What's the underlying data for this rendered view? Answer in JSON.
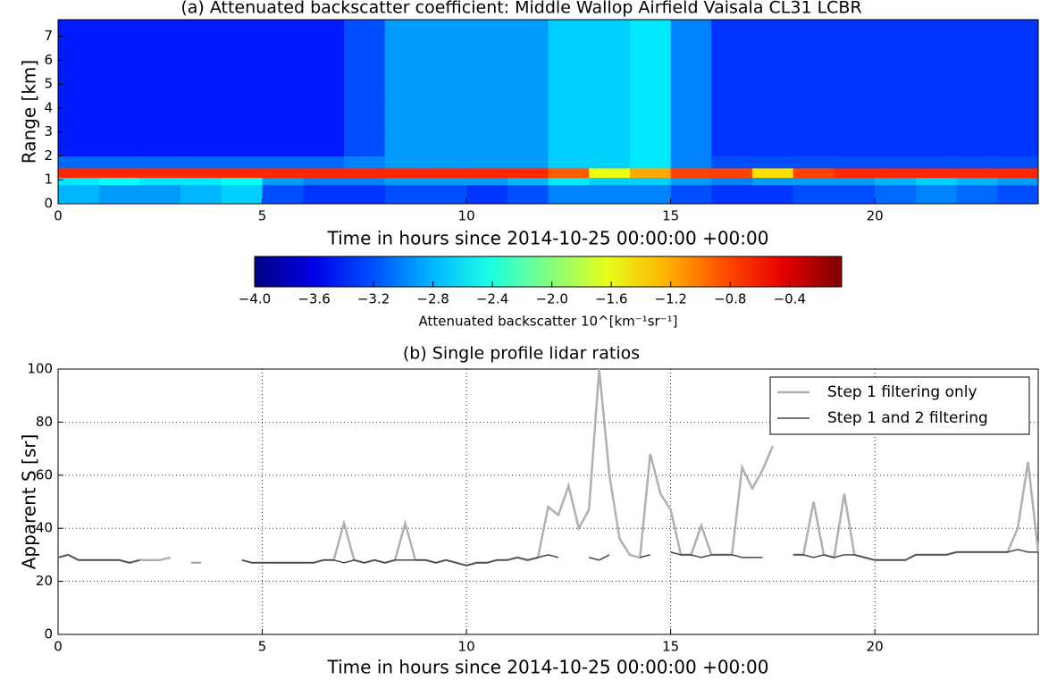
{
  "chart_data": [
    {
      "type": "heatmap",
      "title": "(a)   Attenuated backscatter coefficient: Middle Wallop Airfield Vaisala CL31 LCBR",
      "xlabel": "Time in hours since 2014-10-25 00:00:00 +00:00",
      "ylabel": "Range [km]",
      "x_edges": [
        0,
        1,
        2,
        3,
        4,
        5,
        6,
        7,
        8,
        9,
        10,
        11,
        12,
        13,
        14,
        15,
        16,
        17,
        18,
        19,
        20,
        21,
        22,
        23,
        24
      ],
      "y_edges": [
        0,
        0.8,
        1.1,
        1.5,
        2,
        3,
        4.5,
        6,
        7.7
      ],
      "z": [
        [
          -2.8,
          -2.9,
          -2.9,
          -2.8,
          -2.7,
          -3.2,
          -3.3,
          -3.3,
          -3.2,
          -3.2,
          -3.3,
          -3.2,
          -3.0,
          -3.0,
          -3.0,
          -3.2,
          -3.3,
          -3.3,
          -3.2,
          -3.2,
          -3.1,
          -3.0,
          -3.1,
          -3.2
        ],
        [
          -2.6,
          -2.5,
          -2.6,
          -2.6,
          -2.5,
          -2.9,
          -3.0,
          -3.0,
          -2.9,
          -2.9,
          -2.9,
          -2.8,
          -2.6,
          -2.7,
          -2.7,
          -2.9,
          -3.0,
          -2.9,
          -2.9,
          -2.9,
          -2.8,
          -2.7,
          -2.8,
          -2.9
        ],
        [
          -0.7,
          -0.7,
          -0.7,
          -0.7,
          -0.7,
          -0.7,
          -0.7,
          -0.7,
          -0.7,
          -0.7,
          -0.7,
          -0.7,
          -0.9,
          -1.6,
          -1.2,
          -0.8,
          -0.8,
          -1.4,
          -0.8,
          -0.7,
          -0.7,
          -0.7,
          -0.7,
          -0.7
        ],
        [
          -3.1,
          -3.1,
          -3.1,
          -3.1,
          -3.1,
          -3.1,
          -3.1,
          -3.0,
          -2.9,
          -2.9,
          -2.9,
          -2.9,
          -2.7,
          -2.7,
          -2.6,
          -3.0,
          -3.2,
          -3.2,
          -3.2,
          -3.2,
          -3.2,
          -3.2,
          -3.2,
          -3.2
        ],
        [
          -3.4,
          -3.4,
          -3.4,
          -3.4,
          -3.4,
          -3.4,
          -3.4,
          -3.2,
          -2.9,
          -2.9,
          -2.9,
          -2.9,
          -2.7,
          -2.7,
          -2.6,
          -3.0,
          -3.3,
          -3.3,
          -3.3,
          -3.3,
          -3.3,
          -3.3,
          -3.3,
          -3.3
        ],
        [
          -3.4,
          -3.4,
          -3.4,
          -3.4,
          -3.4,
          -3.4,
          -3.4,
          -3.2,
          -2.9,
          -2.9,
          -2.9,
          -2.9,
          -2.7,
          -2.7,
          -2.6,
          -3.0,
          -3.3,
          -3.3,
          -3.3,
          -3.3,
          -3.3,
          -3.3,
          -3.3,
          -3.3
        ],
        [
          -3.4,
          -3.4,
          -3.4,
          -3.4,
          -3.4,
          -3.4,
          -3.4,
          -3.2,
          -2.9,
          -2.9,
          -2.9,
          -2.9,
          -2.7,
          -2.7,
          -2.6,
          -3.0,
          -3.3,
          -3.3,
          -3.3,
          -3.3,
          -3.3,
          -3.3,
          -3.3,
          -3.3
        ],
        [
          -3.4,
          -3.4,
          -3.4,
          -3.4,
          -3.4,
          -3.4,
          -3.4,
          -3.2,
          -2.9,
          -2.9,
          -2.9,
          -2.9,
          -2.7,
          -2.7,
          -2.6,
          -3.0,
          -3.3,
          -3.3,
          -3.3,
          -3.3,
          -3.3,
          -3.3,
          -3.3,
          -3.3
        ]
      ],
      "xlim": [
        0,
        24
      ],
      "ylim": [
        0,
        7.7
      ],
      "xticks": [
        0,
        5,
        10,
        15,
        20
      ],
      "yticks": [
        0,
        1,
        2,
        3,
        4,
        5,
        6,
        7
      ],
      "colorbar": {
        "label": "Attenuated backscatter 10^[km⁻¹sr⁻¹]",
        "lim": [
          -4.0,
          -0.05
        ],
        "ticks": [
          {
            "value": -4.0,
            "label": "−4.0"
          },
          {
            "value": -3.6,
            "label": "−3.6"
          },
          {
            "value": -3.2,
            "label": "−3.2"
          },
          {
            "value": -2.8,
            "label": "−2.8"
          },
          {
            "value": -2.4,
            "label": "−2.4"
          },
          {
            "value": -2.0,
            "label": "−2.0"
          },
          {
            "value": -1.6,
            "label": "−1.6"
          },
          {
            "value": -1.2,
            "label": "−1.2"
          },
          {
            "value": -0.8,
            "label": "−0.8"
          },
          {
            "value": -0.4,
            "label": "−0.4"
          }
        ]
      }
    },
    {
      "type": "line",
      "title": "(b)  Single profile lidar  ratios",
      "xlabel": "Time in hours since 2014-10-25 00:00:00 +00:00",
      "ylabel": "Apparent S [sr]",
      "x": [
        0,
        0.25,
        0.5,
        0.75,
        1,
        1.25,
        1.5,
        1.75,
        2,
        2.25,
        2.5,
        2.75,
        3,
        3.25,
        3.5,
        3.75,
        4,
        4.25,
        4.5,
        4.75,
        5,
        5.25,
        5.5,
        5.75,
        6,
        6.25,
        6.5,
        6.75,
        7,
        7.25,
        7.5,
        7.75,
        8,
        8.25,
        8.5,
        8.75,
        9,
        9.25,
        9.5,
        9.75,
        10,
        10.25,
        10.5,
        10.75,
        11,
        11.25,
        11.5,
        11.75,
        12,
        12.25,
        12.5,
        12.75,
        13,
        13.25,
        13.5,
        13.75,
        14,
        14.25,
        14.5,
        14.75,
        15,
        15.25,
        15.5,
        15.75,
        16,
        16.25,
        16.5,
        16.75,
        17,
        17.25,
        17.5,
        17.75,
        18,
        18.25,
        18.5,
        18.75,
        19,
        19.25,
        19.5,
        19.75,
        20,
        20.25,
        20.5,
        20.75,
        21,
        21.25,
        21.5,
        21.75,
        22,
        22.25,
        22.5,
        22.75,
        23,
        23.25,
        23.5,
        23.75,
        24
      ],
      "series": [
        {
          "name": "Step 1 filtering only",
          "color": "#b0b0b0",
          "width": 2.5,
          "values": [
            29,
            30,
            28,
            28,
            28,
            28,
            28,
            27,
            28,
            28,
            28,
            29,
            null,
            27,
            27,
            null,
            null,
            null,
            28,
            27,
            27,
            27,
            27,
            27,
            27,
            27,
            28,
            28,
            42,
            28,
            27,
            28,
            27,
            28,
            42,
            28,
            28,
            27,
            28,
            27,
            26,
            27,
            27,
            28,
            28,
            29,
            28,
            29,
            48,
            45,
            56,
            40,
            47,
            100,
            60,
            36,
            30,
            29,
            68,
            53,
            47,
            30,
            30,
            41,
            30,
            30,
            30,
            63,
            55,
            62,
            71,
            null,
            30,
            30,
            50,
            30,
            29,
            53,
            30,
            29,
            28,
            28,
            28,
            28,
            30,
            30,
            30,
            30,
            31,
            31,
            31,
            31,
            31,
            31,
            40,
            65,
            31
          ]
        },
        {
          "name": "Step 1 and 2 filtering",
          "color": "#484848",
          "width": 1.5,
          "values": [
            29,
            30,
            28,
            28,
            28,
            28,
            28,
            27,
            28,
            null,
            28,
            null,
            null,
            null,
            27,
            null,
            null,
            null,
            28,
            27,
            27,
            27,
            27,
            27,
            27,
            27,
            28,
            28,
            27,
            28,
            27,
            28,
            27,
            28,
            28,
            28,
            28,
            27,
            28,
            27,
            26,
            27,
            27,
            28,
            28,
            29,
            28,
            29,
            30,
            29,
            null,
            null,
            29,
            28,
            30,
            null,
            null,
            29,
            30,
            null,
            31,
            30,
            30,
            29,
            30,
            30,
            30,
            29,
            29,
            29,
            null,
            null,
            30,
            30,
            29,
            30,
            29,
            30,
            30,
            29,
            28,
            28,
            28,
            28,
            30,
            30,
            30,
            30,
            31,
            31,
            31,
            31,
            31,
            31,
            32,
            31,
            31
          ]
        }
      ],
      "xlim": [
        0,
        24
      ],
      "ylim": [
        0,
        100
      ],
      "xticks": [
        0,
        5,
        10,
        15,
        20
      ],
      "yticks": [
        0,
        20,
        40,
        60,
        80,
        100
      ],
      "grid": true,
      "legend": "upper right"
    }
  ]
}
